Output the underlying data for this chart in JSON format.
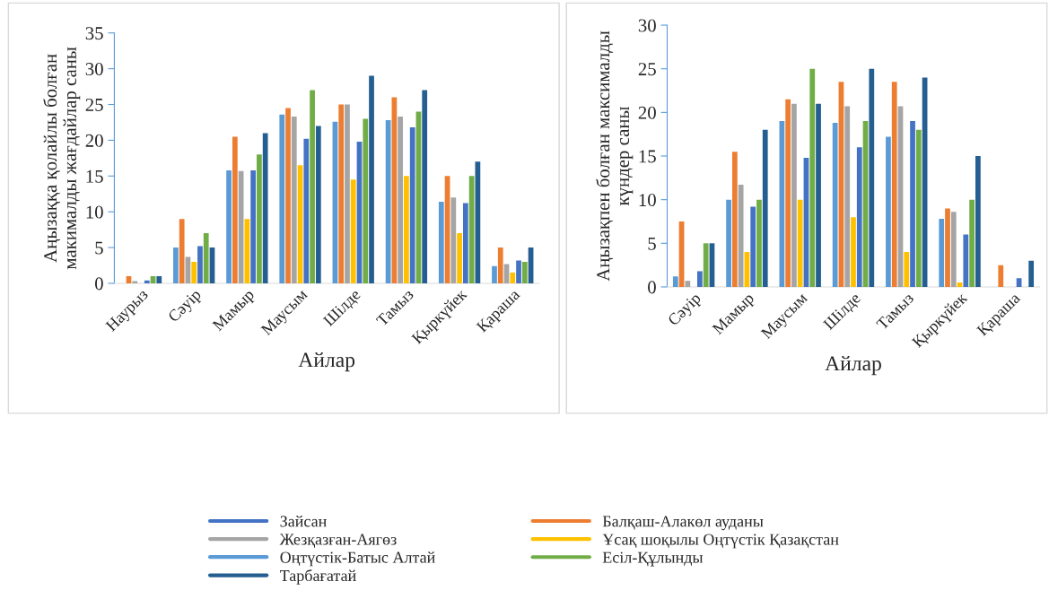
{
  "chart_data": [
    {
      "type": "bar",
      "xlabel": "Айлар",
      "ylabel": "Аңызаққа қолайлы болған\nмакималды жағдайлар саны",
      "categories": [
        "Наурыз",
        "Сәуір",
        "Мамыр",
        "Маусым",
        "Шілде",
        "Тамыз",
        "Қыркүйек",
        "Қараша"
      ],
      "ylim": [
        0,
        35
      ],
      "yticks": [
        0,
        5,
        10,
        15,
        20,
        25,
        30,
        35
      ],
      "grid": false,
      "legend": "bottom",
      "series": [
        {
          "name": "Оңтүстік-Батыс Алтай",
          "color": "#5b9bd5",
          "values": [
            null,
            5,
            15.8,
            23.6,
            22.6,
            22.8,
            11.4,
            2.4
          ]
        },
        {
          "name": "Балқаш-Алакөл ауданы",
          "color": "#ed7d31",
          "values": [
            1,
            9,
            20.5,
            24.5,
            25,
            26,
            15,
            5
          ]
        },
        {
          "name": "Жезқазған-Аягөз",
          "color": "#a5a5a5",
          "values": [
            0.3,
            3.7,
            15.7,
            23.3,
            25,
            23.3,
            12,
            2.7
          ]
        },
        {
          "name": "Ұсақ шоқылы Оңтүстік Қазақстан",
          "color": "#ffc000",
          "values": [
            null,
            3,
            9,
            16.5,
            14.5,
            15,
            7,
            1.5
          ]
        },
        {
          "name": "Зайсан",
          "color": "#4472c4",
          "values": [
            0.4,
            5.2,
            15.8,
            20.2,
            19.8,
            21.8,
            11.2,
            3.2
          ]
        },
        {
          "name": "Есіл-Құлынды",
          "color": "#70ad47",
          "values": [
            1,
            7,
            18,
            27,
            23,
            24,
            15,
            3
          ]
        },
        {
          "name": "Тарбағатай",
          "color": "#255e91",
          "values": [
            1,
            5,
            21,
            22,
            29,
            27,
            17,
            5
          ]
        }
      ]
    },
    {
      "type": "bar",
      "xlabel": "Айлар",
      "ylabel": "Аңызақпен болған максималды\nкүндер саны",
      "categories": [
        "Сәуір",
        "Мамыр",
        "Маусым",
        "Шілде",
        "Тамыз",
        "Қыркүйек",
        "Қараша"
      ],
      "ylim": [
        0,
        30
      ],
      "yticks": [
        0,
        5,
        10,
        15,
        20,
        25,
        30
      ],
      "grid": false,
      "series": [
        {
          "color": "#5b9bd5",
          "values": [
            1.2,
            10,
            19,
            18.8,
            17.2,
            7.8,
            null
          ]
        },
        {
          "color": "#ed7d31",
          "values": [
            7.5,
            15.5,
            21.5,
            23.5,
            23.5,
            9,
            2.5
          ]
        },
        {
          "color": "#a5a5a5",
          "values": [
            0.7,
            11.7,
            21,
            20.7,
            20.7,
            8.6,
            null
          ]
        },
        {
          "color": "#ffc000",
          "values": [
            null,
            4,
            10,
            8,
            4,
            0.5,
            null
          ]
        },
        {
          "color": "#4472c4",
          "values": [
            1.8,
            9.2,
            14.8,
            16,
            19,
            6,
            1
          ]
        },
        {
          "color": "#70ad47",
          "values": [
            5,
            10,
            25,
            19,
            18,
            10,
            null
          ]
        },
        {
          "color": "#255e91",
          "values": [
            5,
            18,
            21,
            25,
            24,
            15,
            3
          ]
        }
      ]
    }
  ]
}
